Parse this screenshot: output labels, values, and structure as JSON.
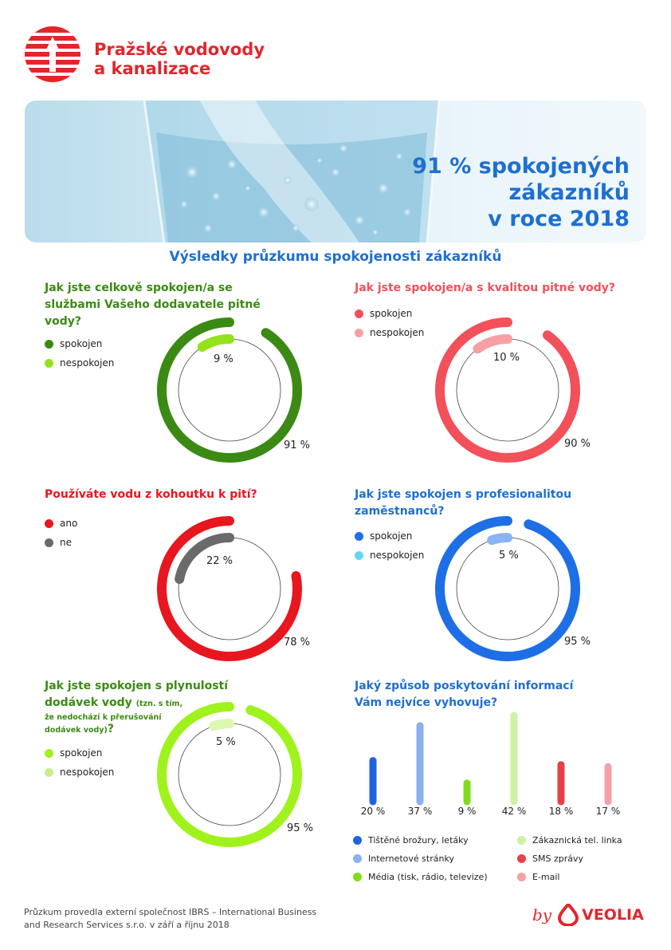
{
  "header": {
    "brand_line1": "Pražské vodovody",
    "brand_line2": "a kanalizace"
  },
  "banner": {
    "headline_line1": "91 % spokojených",
    "headline_line2": "zákazníků",
    "headline_line3": "v roce 2018"
  },
  "subtitle": "Výsledky průzkumu spokojenosti zákazníků",
  "q1": {
    "title_line1": "Jak jste celkově spokojen/a se",
    "title_line2": "službami Vašeho dodavatele pitné",
    "title_line3": "vody?",
    "legend": [
      "spokojen",
      "nespokojen"
    ],
    "outer_value": 91,
    "inner_value": 9,
    "outer_label": "91 %",
    "inner_label": "9 %",
    "colors": {
      "outer": "#3a8a13",
      "inner": "#94e21c"
    }
  },
  "q2": {
    "title_line1": "Jak jste spokojen/a s kvalitou pitné vody?",
    "legend": [
      "spokojen",
      "nespokojen"
    ],
    "outer_value": 90,
    "inner_value": 10,
    "outer_label": "90 %",
    "inner_label": "10 %",
    "colors": {
      "outer": "#f2505a",
      "inner": "#f6a0a6"
    }
  },
  "q3": {
    "title_line1": "Používáte vodu z kohoutku k pití?",
    "legend": [
      "ano",
      "ne"
    ],
    "outer_value": 78,
    "inner_value": 22,
    "outer_label": "78 %",
    "inner_label": "22 %",
    "colors": {
      "outer": "#e8161e",
      "inner": "#6a6a6a"
    }
  },
  "q4": {
    "title_line1": "Jak jste spokojen s profesionalitou",
    "title_line2": "zaměstnanců?",
    "legend": [
      "spokojen",
      "nespokojen"
    ],
    "outer_value": 95,
    "inner_value": 5,
    "outer_label": "95 %",
    "inner_label": "5 %",
    "colors": {
      "outer": "#1e6fe6",
      "inner": "#8ab4f2",
      "legend_inner": "#62d8ef"
    }
  },
  "q5": {
    "title_line1": "Jak jste spokojen s plynulostí",
    "title_line2": "dodávek vody",
    "title_small1": "(tzn. s tím,",
    "title_small2": "že nedochází k přerušování",
    "title_small3": "dodávek vody)",
    "title_q": "?",
    "legend": [
      "spokojen",
      "nespokojen"
    ],
    "outer_value": 95,
    "inner_value": 5,
    "outer_label": "95 %",
    "inner_label": "5 %",
    "colors": {
      "outer": "#9ff21c",
      "inner": "#dbf7b0",
      "legend_inner": "#c8f08a"
    }
  },
  "q6": {
    "title_line1": "Jaký způsob poskytování informací",
    "title_line2": "Vám nejvíce vyhovuje?"
  },
  "chart_data": {
    "type": "bar",
    "categories": [
      "Tištěné brožury, letáky",
      "Internetové stránky",
      "Média (tisk, rádio, televize)",
      "Zákaznická tel. linka",
      "SMS zprávy",
      "E-mail"
    ],
    "values": [
      20,
      37,
      9,
      42,
      18,
      17
    ],
    "value_labels": [
      "20 %",
      "37 %",
      "9 %",
      "42 %",
      "18 %",
      "17 %"
    ],
    "colors": [
      "#1e64dc",
      "#8ab0ee",
      "#7fdc1c",
      "#cdf2a4",
      "#e84048",
      "#f4a0a6"
    ]
  },
  "footer": {
    "line1": "Průzkum provedla  externí společnost IBRS – International Business",
    "line2": "and Research Services s.r.o. v září a říjnu 2018",
    "by": "by",
    "veolia": "VEOLIA"
  }
}
